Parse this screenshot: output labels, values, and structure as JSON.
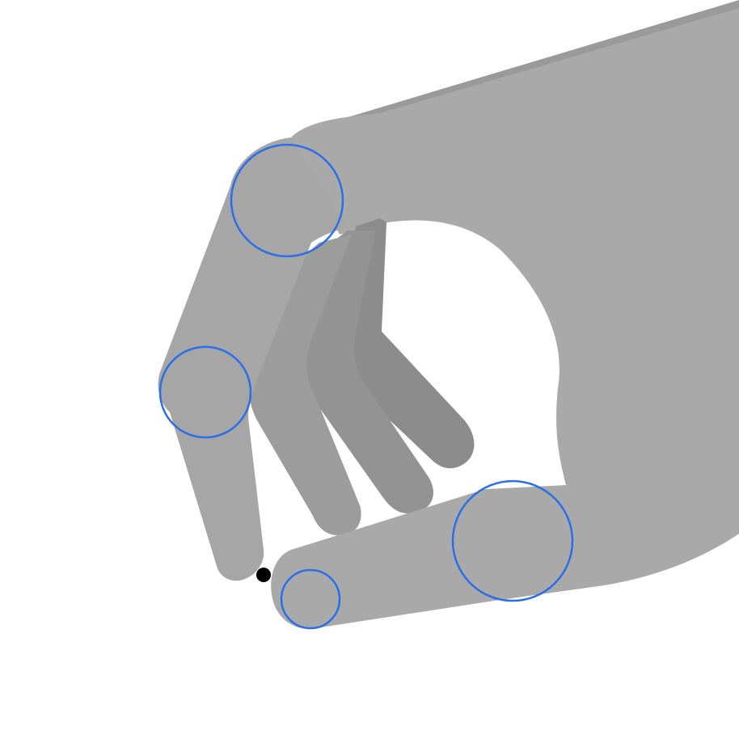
{
  "figure": {
    "subject": "pinch-hand",
    "gesture": "pinch",
    "marker_style": "outline-circle",
    "markers": [
      {
        "name": "index-knuckle-marker"
      },
      {
        "name": "index-middle-joint-marker"
      },
      {
        "name": "thumb-base-joint-marker"
      },
      {
        "name": "thumb-tip-marker"
      }
    ],
    "contact_dot": {
      "name": "pinch-contact-point"
    }
  },
  "colors": {
    "background": "#ffffff",
    "palm": "#a9a9a9",
    "index_finger": "#a6a6a6",
    "middle_finger": "#9c9c9c",
    "ring_finger": "#939393",
    "pinky_finger": "#8c8c8c",
    "thumb": "#a9a9a9",
    "forearm_shadow": "#9a9a9a",
    "marker_stroke": "#2a6ee8",
    "contact_dot": "#000000"
  }
}
